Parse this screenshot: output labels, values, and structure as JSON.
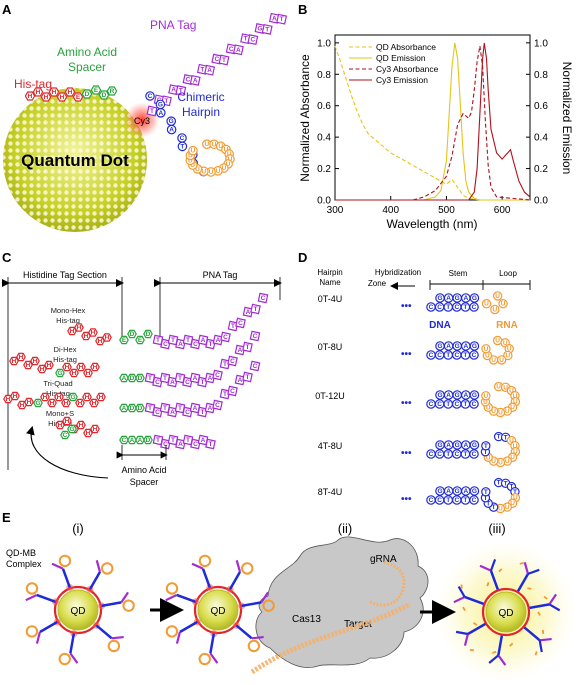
{
  "colors": {
    "his": "#e0262b",
    "aa": "#27a33c",
    "pna": "#a32bd3",
    "dna": "#1f2bd6",
    "rna": "#f39a30",
    "qd": "#c9d127",
    "cy3": "#e0262b"
  },
  "panel_a": {
    "label": "A",
    "pna_tag": "PNA Tag",
    "amino_acid_spacer": [
      "Amino Acid",
      "Spacer"
    ],
    "his_tag": "His-tag",
    "cy3": "Cy3",
    "chimeric_hairpin": [
      "Chimeric",
      "Hairpin"
    ],
    "quantum_dot": "Quantum Dot",
    "his_seq": "HHHHHHE",
    "aa_seq": "DEDR",
    "pna_seq": "TCTATCATACTCATCGTAT",
    "dna_seq": "CGAGACTCTC",
    "rna_seq": "UUUUUUUU"
  },
  "panel_b": {
    "label": "B"
  },
  "chart_data": {
    "type": "line",
    "xlabel": "Wavelength (nm)",
    "ylabel": "Normalized Absorbance",
    "y2label": "Normalized Emission",
    "xlim": [
      300,
      650
    ],
    "ylim": [
      0,
      1.05
    ],
    "xticks": [
      300,
      400,
      500,
      600
    ],
    "yticks": [
      0,
      0.2,
      0.4,
      0.6,
      0.8,
      1.0
    ],
    "y2ticks": [
      0,
      0.2,
      0.4,
      0.6,
      0.8,
      1.0
    ],
    "legend_position": "top-right",
    "series": [
      {
        "name": "QD Absorbance",
        "color": "#e6c41a",
        "dash": true,
        "x": [
          300,
          310,
          320,
          330,
          340,
          350,
          360,
          380,
          400,
          420,
          440,
          460,
          480,
          500,
          510,
          520,
          530,
          540,
          560,
          580,
          600,
          650
        ],
        "y": [
          0.98,
          0.88,
          0.77,
          0.66,
          0.56,
          0.48,
          0.42,
          0.36,
          0.3,
          0.26,
          0.22,
          0.18,
          0.14,
          0.1,
          0.13,
          0.08,
          0.03,
          0.01,
          0.0,
          0.0,
          0.0,
          0.0
        ]
      },
      {
        "name": "QD Emission",
        "color": "#e6c41a",
        "dash": false,
        "x": [
          300,
          460,
          480,
          490,
          500,
          505,
          510,
          515,
          520,
          525,
          530,
          535,
          540,
          550,
          560,
          580,
          650
        ],
        "y": [
          0.0,
          0.0,
          0.02,
          0.06,
          0.25,
          0.55,
          0.85,
          1.0,
          0.9,
          0.6,
          0.3,
          0.12,
          0.05,
          0.01,
          0.0,
          0.0,
          0.0
        ]
      },
      {
        "name": "Cy3 Absorbance",
        "color": "#b0101a",
        "dash": true,
        "x": [
          300,
          440,
          460,
          480,
          500,
          510,
          520,
          530,
          540,
          545,
          550,
          555,
          560,
          565,
          570,
          575,
          580,
          590,
          650
        ],
        "y": [
          0.0,
          0.0,
          0.02,
          0.06,
          0.15,
          0.28,
          0.48,
          0.55,
          0.52,
          0.56,
          0.7,
          0.88,
          0.98,
          0.85,
          0.5,
          0.22,
          0.08,
          0.02,
          0.0
        ]
      },
      {
        "name": "Cy3 Emission",
        "color": "#b0101a",
        "dash": false,
        "x": [
          300,
          540,
          550,
          555,
          560,
          565,
          568,
          572,
          575,
          580,
          590,
          600,
          610,
          615,
          620,
          630,
          640,
          650
        ],
        "y": [
          0.0,
          0.0,
          0.05,
          0.2,
          0.55,
          0.9,
          1.0,
          0.9,
          0.7,
          0.45,
          0.3,
          0.26,
          0.3,
          0.32,
          0.25,
          0.12,
          0.05,
          0.02
        ]
      }
    ]
  },
  "panel_c": {
    "label": "C",
    "histidine_section": "Histidine Tag Section",
    "pna_tag": "PNA Tag",
    "amino_acid_spacer": [
      "Amino Acid",
      "Spacer"
    ],
    "rows": [
      {
        "name": [
          "Mono-Hex",
          "His-tag"
        ],
        "his": "HHHHHH",
        "g": "",
        "aa": "EDED",
        "pna": "TCTATCATACTCATC"
      },
      {
        "name": [
          "Di-Hex",
          "His-tag"
        ],
        "his": "HHHHHH",
        "g": "GHHHHH",
        "aa": "ADD",
        "pna": "TCTATCATACTCATC"
      },
      {
        "name": [
          "Tri-Quad",
          "His-tag"
        ],
        "his": "HHHH",
        "g": "GHHHHGHHHH",
        "aa": "ADD",
        "pna": "TCTATCATACTCATC"
      },
      {
        "name": [
          "Mono+S",
          "His-tag"
        ],
        "his": "HHHHHH",
        "g": "CG",
        "aa": "CAAD",
        "pna": "TCTATCAT"
      }
    ]
  },
  "panel_d": {
    "label": "D",
    "header_hairpin": [
      "Hairpin",
      "Name"
    ],
    "header_hybridization": [
      "Hybridization",
      "Zone"
    ],
    "header_stem": "Stem",
    "header_loop": "Loop",
    "dna": "DNA",
    "rna": "RNA",
    "stem_top": "GAGAG",
    "stem_bottom": "CCTCTC",
    "hairpins": [
      {
        "name": "0T-4U",
        "t": 0,
        "u": 4
      },
      {
        "name": "0T-8U",
        "t": 0,
        "u": 8
      },
      {
        "name": "0T-12U",
        "t": 0,
        "u": 12
      },
      {
        "name": "4T-8U",
        "t": 4,
        "u": 8
      },
      {
        "name": "8T-4U",
        "t": 8,
        "u": 4
      }
    ]
  },
  "panel_e": {
    "label": "E",
    "steps": [
      "(i)",
      "(ii)",
      "(iii)"
    ],
    "complex": [
      "QD-MB",
      "Complex"
    ],
    "qd": "QD",
    "grna": "gRNA",
    "cas13": "Cas13",
    "target": "Target"
  }
}
